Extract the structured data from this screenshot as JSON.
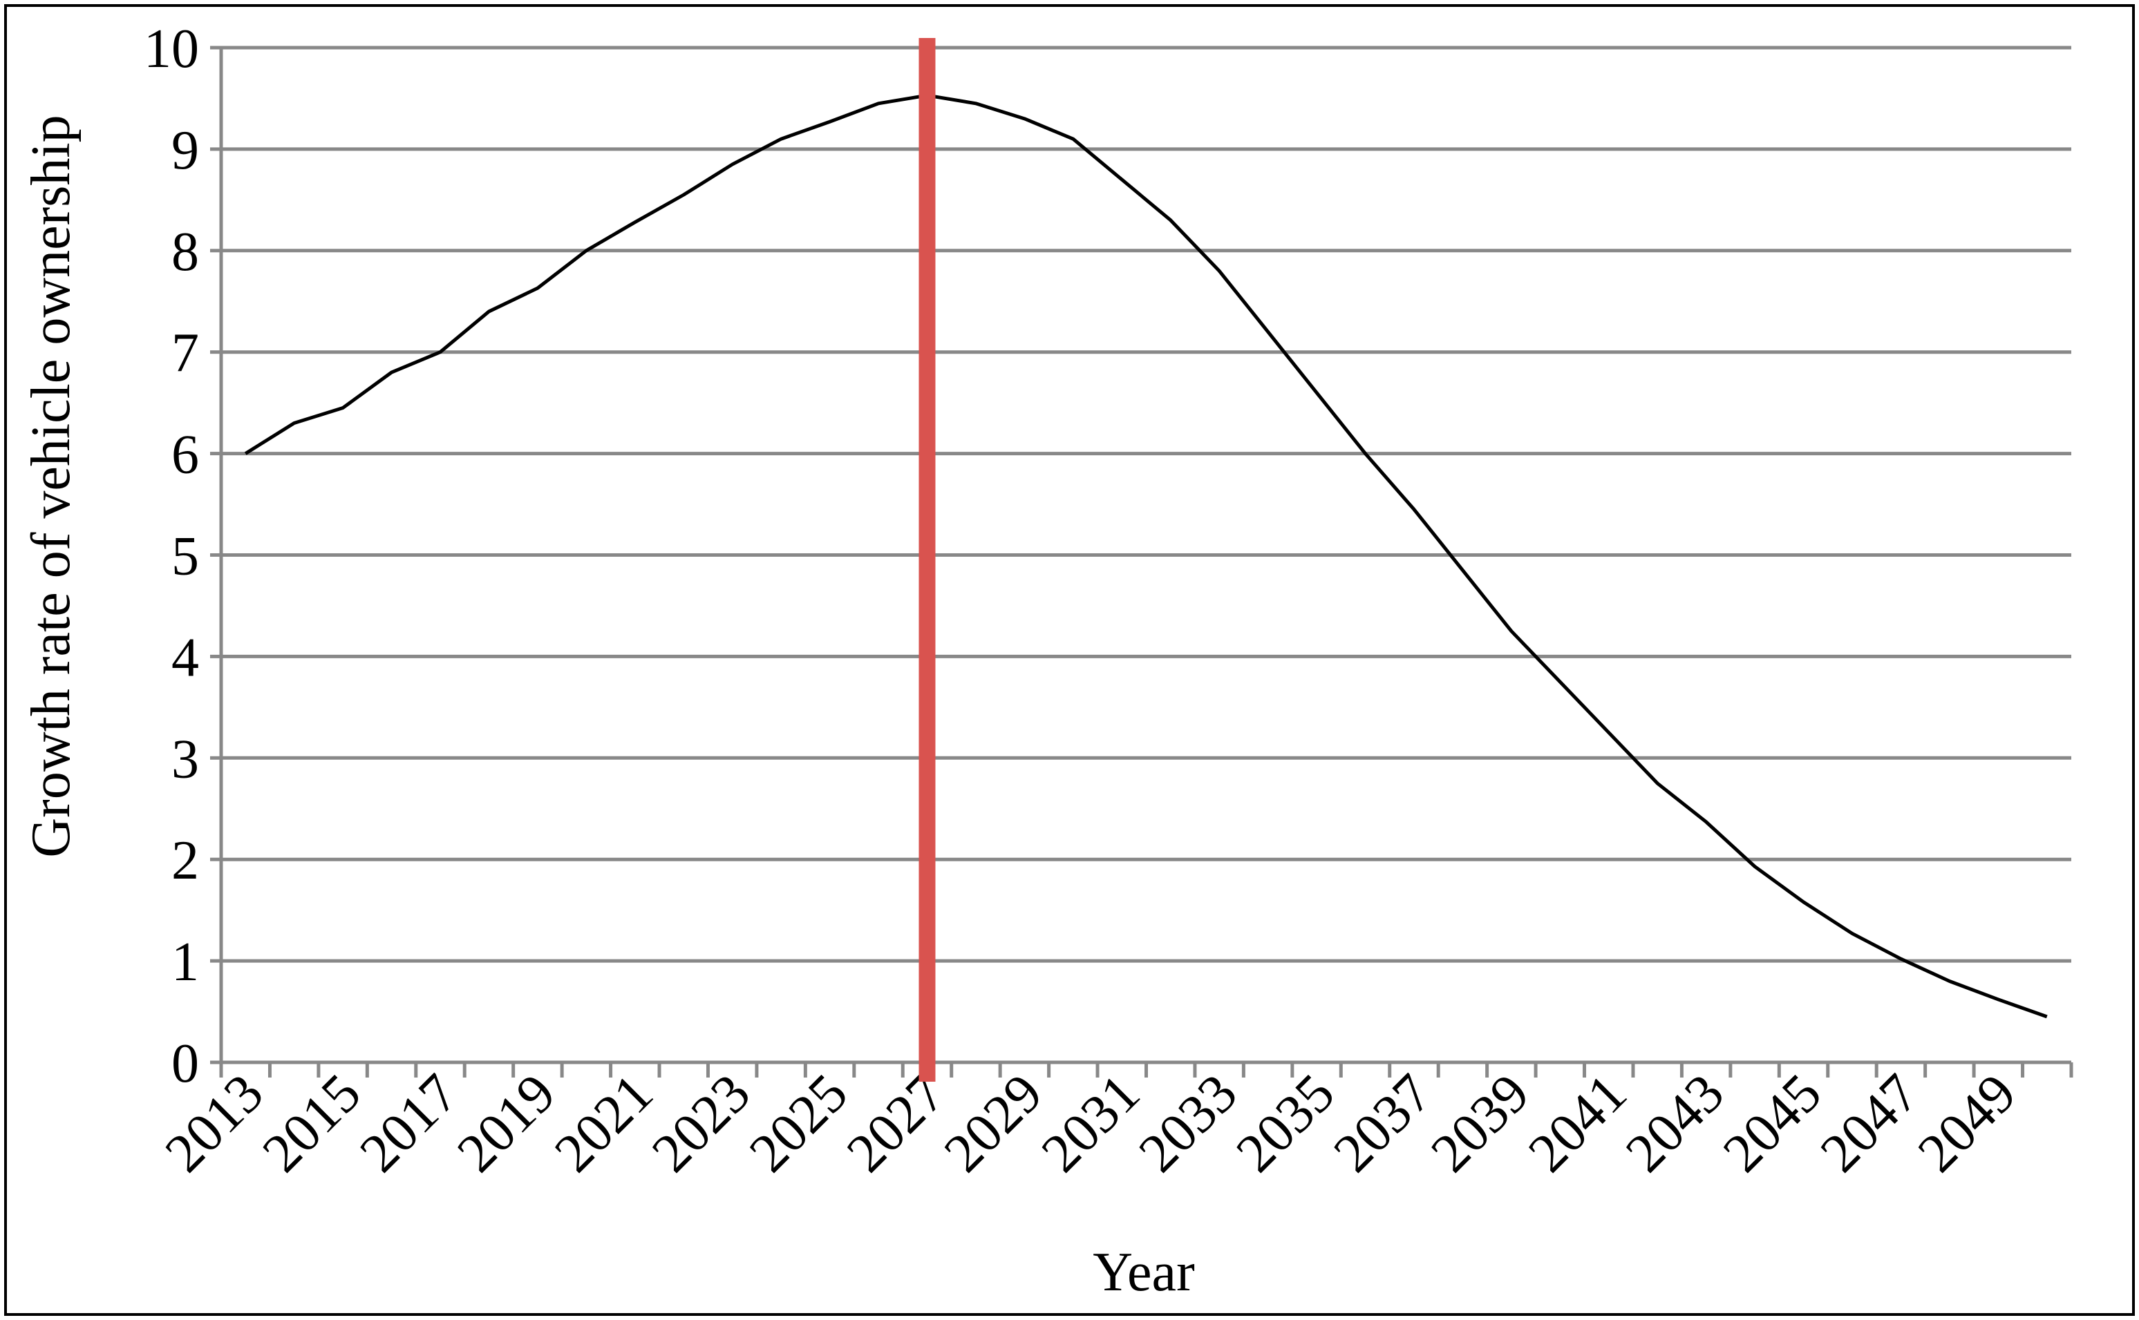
{
  "chart_data": {
    "type": "line",
    "x_label": "Year",
    "y_label": "Growth rate of vehicle ownership",
    "categories": [
      "2013",
      null,
      "2015",
      null,
      "2017",
      null,
      "2019",
      null,
      "2021",
      null,
      "2023",
      null,
      "2025",
      null,
      "2027",
      null,
      "2029",
      null,
      "2031",
      null,
      "2033",
      null,
      "2035",
      null,
      "2037",
      null,
      "2039",
      null,
      "2041",
      null,
      "2043",
      null,
      "2045",
      null,
      "2047",
      null,
      "2049",
      null
    ],
    "series": [
      {
        "name": "Growth rate of vehicle ownership",
        "color": "#000000",
        "values": [
          6.0,
          6.3,
          6.45,
          6.8,
          7.0,
          7.4,
          7.63,
          8.0,
          8.28,
          8.55,
          8.85,
          9.1,
          9.27,
          9.45,
          9.53,
          9.45,
          9.3,
          9.1,
          8.7,
          8.3,
          7.8,
          7.2,
          6.6,
          6.0,
          5.45,
          4.85,
          4.25,
          3.75,
          3.25,
          2.75,
          2.37,
          1.93,
          1.58,
          1.27,
          1.02,
          0.8,
          0.62,
          0.45
        ]
      }
    ],
    "vline": {
      "x": "2027",
      "color": "#d9534f"
    },
    "ylim": [
      0,
      10
    ],
    "yticks": [
      0,
      1,
      2,
      3,
      4,
      5,
      6,
      7,
      8,
      9,
      10
    ],
    "grid": true
  }
}
